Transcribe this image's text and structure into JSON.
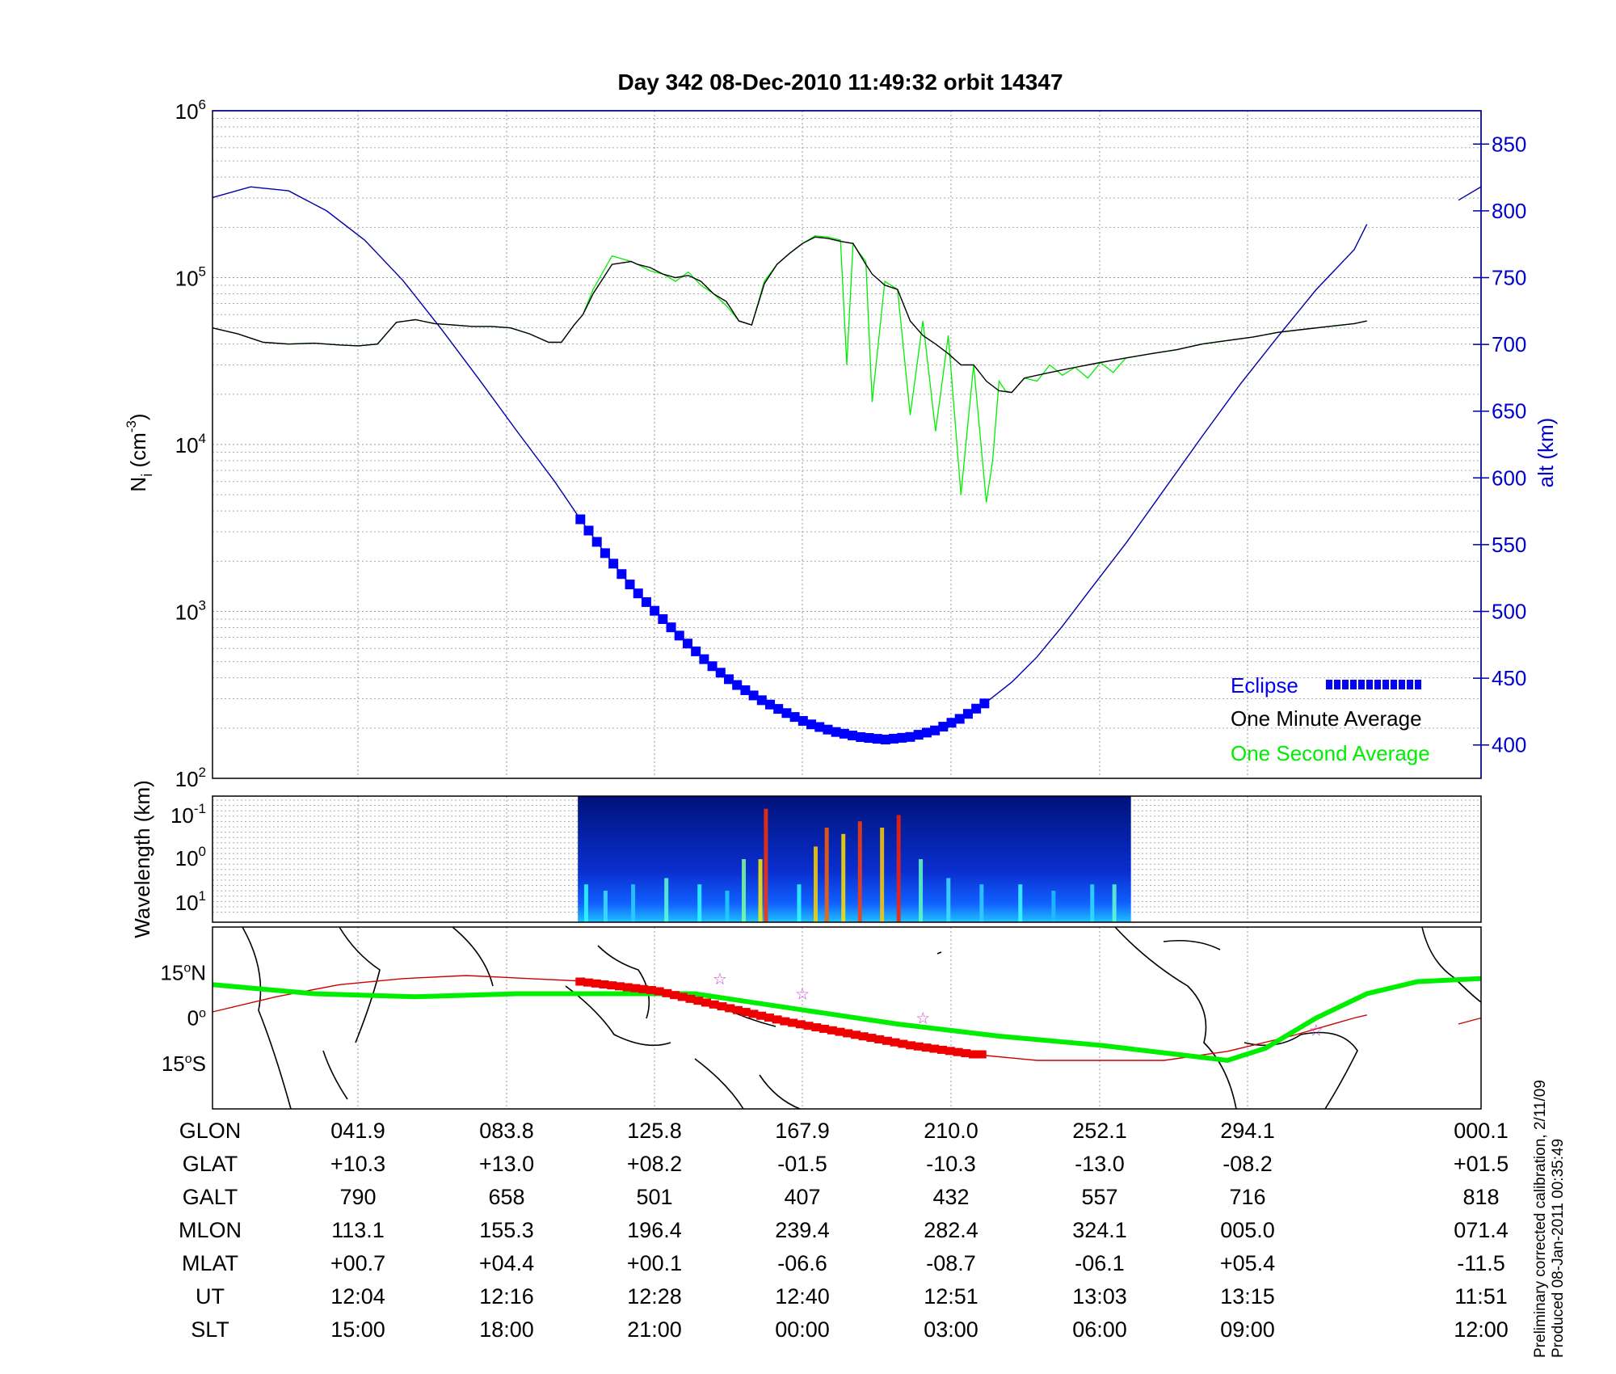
{
  "title": "Day 342  08-Dec-2010 11:49:32   orbit 14347",
  "chart_data": [
    {
      "type": "line",
      "panel": "density-altitude",
      "ylabel_left_html": "N",
      "ylabel_left_sub": "i",
      "ylabel_left_unit": "(cm",
      "ylabel_left_exp": "-3",
      "ylabel_left_close": ")",
      "ylabel_right": "alt (km)",
      "yscale_left": "log",
      "ylim_left": [
        100,
        1000000
      ],
      "yticks_left": [
        {
          "base": "10",
          "exp": "2"
        },
        {
          "base": "10",
          "exp": "3"
        },
        {
          "base": "10",
          "exp": "4"
        },
        {
          "base": "10",
          "exp": "5"
        },
        {
          "base": "10",
          "exp": "6"
        }
      ],
      "ylim_right": [
        375,
        875
      ],
      "yticks_right": [
        "400",
        "450",
        "500",
        "550",
        "600",
        "650",
        "700",
        "750",
        "800",
        "850"
      ],
      "x_ticks": [
        "12:04",
        "12:16",
        "12:28",
        "12:40",
        "12:51",
        "13:03",
        "13:15",
        "11:51"
      ],
      "grid": true,
      "legend": {
        "placement": "bottom-right",
        "entries": [
          {
            "label": "Eclipse",
            "color": "#0000ff"
          },
          {
            "label": "One Minute Average",
            "color": "#000000"
          },
          {
            "label": "One Second Average",
            "color": "#00ee00"
          }
        ]
      },
      "series": [
        {
          "name": "One Minute Average",
          "color": "#000000",
          "x": [
            0,
            0.02,
            0.04,
            0.06,
            0.08,
            0.1,
            0.115,
            0.13,
            0.145,
            0.16,
            0.175,
            0.19,
            0.205,
            0.22,
            0.235,
            0.25,
            0.265,
            0.275,
            0.285,
            0.292,
            0.3,
            0.315,
            0.33,
            0.335,
            0.345,
            0.355,
            0.365,
            0.375,
            0.385,
            0.395,
            0.405,
            0.415,
            0.425,
            0.435,
            0.445,
            0.455,
            0.465,
            0.475,
            0.485,
            0.495,
            0.505,
            0.515,
            0.52,
            0.53,
            0.54,
            0.55,
            0.56,
            0.57,
            0.58,
            0.59,
            0.6,
            0.61,
            0.62,
            0.63,
            0.64,
            0.65,
            0.66,
            0.67,
            0.68,
            0.69,
            0.7,
            0.71,
            0.72,
            0.74,
            0.76,
            0.78,
            0.8,
            0.82,
            0.84,
            0.86,
            0.88,
            0.9,
            0.91
          ],
          "y": [
            50000,
            46000,
            41000,
            40000,
            40500,
            39500,
            39000,
            40000,
            54000,
            56000,
            53000,
            52000,
            51000,
            51000,
            50000,
            46000,
            41000,
            41000,
            52000,
            60000,
            80000,
            120000,
            125000,
            120000,
            115000,
            105000,
            100000,
            103000,
            95000,
            80000,
            72000,
            55000,
            52000,
            92000,
            120000,
            140000,
            160000,
            175000,
            172000,
            165000,
            160000,
            120000,
            105000,
            90000,
            85000,
            55000,
            45000,
            40000,
            35000,
            30000,
            30000,
            24000,
            21000,
            20500,
            25000,
            26000,
            27000,
            28000,
            29000,
            30000,
            31000,
            32000,
            33000,
            35000,
            37000,
            40000,
            42000,
            44000,
            47000,
            49000,
            51000,
            53000,
            55000
          ]
        },
        {
          "name": "One Second Average",
          "color": "#00ee00",
          "x": [
            0,
            0.02,
            0.04,
            0.06,
            0.08,
            0.1,
            0.115,
            0.13,
            0.145,
            0.16,
            0.175,
            0.19,
            0.205,
            0.22,
            0.235,
            0.25,
            0.265,
            0.275,
            0.285,
            0.292,
            0.3,
            0.315,
            0.33,
            0.335,
            0.345,
            0.355,
            0.365,
            0.375,
            0.385,
            0.395,
            0.405,
            0.415,
            0.425,
            0.435,
            0.445,
            0.455,
            0.465,
            0.475,
            0.485,
            0.495,
            0.5,
            0.505,
            0.51,
            0.515,
            0.52,
            0.53,
            0.54,
            0.55,
            0.56,
            0.57,
            0.58,
            0.59,
            0.6,
            0.61,
            0.615,
            0.62,
            0.625,
            0.63,
            0.64,
            0.65,
            0.66,
            0.67,
            0.68,
            0.69,
            0.7,
            0.71,
            0.72,
            0.74,
            0.76,
            0.78,
            0.8,
            0.82,
            0.84,
            0.86,
            0.88,
            0.9,
            0.91
          ],
          "y": [
            50000,
            46000,
            41000,
            40000,
            40500,
            39500,
            39000,
            40000,
            54000,
            56000,
            53000,
            52000,
            51000,
            51000,
            50000,
            46000,
            41000,
            41000,
            52000,
            60000,
            85000,
            135000,
            125000,
            120000,
            110000,
            105000,
            95000,
            108000,
            90000,
            80000,
            68000,
            55000,
            52000,
            95000,
            120000,
            140000,
            160000,
            178000,
            175000,
            168000,
            30000,
            160000,
            140000,
            125000,
            18000,
            95000,
            85000,
            15000,
            55000,
            12000,
            45000,
            5000,
            30000,
            4500,
            8000,
            24000,
            21000,
            20500,
            25000,
            24000,
            30000,
            26000,
            29000,
            25000,
            31000,
            27000,
            33000,
            35000,
            37000,
            40000,
            42000,
            44000,
            47000,
            49000,
            51000,
            53000,
            55000
          ]
        },
        {
          "name": "alt",
          "axis": "right",
          "color": "#0000aa",
          "x": [
            0,
            0.03,
            0.06,
            0.09,
            0.12,
            0.15,
            0.18,
            0.21,
            0.24,
            0.27,
            0.29,
            0.31,
            0.33,
            0.35,
            0.37,
            0.39,
            0.41,
            0.43,
            0.45,
            0.47,
            0.49,
            0.51,
            0.53,
            0.55,
            0.57,
            0.59,
            0.61,
            0.63,
            0.65,
            0.67,
            0.69,
            0.72,
            0.75,
            0.78,
            0.81,
            0.84,
            0.87,
            0.9,
            0.91
          ],
          "y": [
            810,
            818,
            815,
            800,
            778,
            748,
            712,
            674,
            635,
            597,
            569,
            543,
            519,
            499,
            480,
            462,
            447,
            435,
            425,
            416,
            410,
            406,
            404,
            406,
            411,
            420,
            432,
            447,
            466,
            489,
            514,
            551,
            591,
            631,
            670,
            706,
            741,
            771,
            790
          ]
        }
      ],
      "eclipse": {
        "x": [
          0.29,
          0.61
        ],
        "x_ticks_as_labels": false
      }
    },
    {
      "type": "heatmap",
      "panel": "spectrogram",
      "ylabel": "Wavelength (km)",
      "yticks": [
        {
          "base": "10",
          "exp": "-1"
        },
        {
          "base": "10",
          "exp": "0"
        },
        {
          "base": "10",
          "exp": "1"
        }
      ],
      "data_window_x": [
        0.288,
        0.724
      ]
    },
    {
      "type": "line",
      "panel": "ground-track-map",
      "yticks": [
        {
          "value": "15",
          "unit": "N"
        },
        {
          "value": "0",
          "unit": ""
        },
        {
          "value": "15",
          "unit": "S"
        }
      ],
      "ylim": [
        -30,
        30
      ],
      "series": [
        {
          "name": "magnetic-equator",
          "color": "#00ee00",
          "x": [
            0,
            0.08,
            0.16,
            0.24,
            0.3,
            0.38,
            0.46,
            0.54,
            0.62,
            0.7,
            0.76,
            0.8,
            0.83,
            0.87,
            0.91,
            0.95,
            1.0
          ],
          "y": [
            11,
            8,
            7,
            8,
            8,
            8,
            3,
            -2,
            -6,
            -9,
            -12,
            -14,
            -10,
            0,
            8,
            12,
            13
          ]
        },
        {
          "name": "orbit-track",
          "color": "#cc0000",
          "x": [
            0,
            0.05,
            0.1,
            0.15,
            0.2,
            0.25,
            0.3,
            0.35,
            0.4,
            0.45,
            0.5,
            0.55,
            0.6,
            0.65,
            0.7,
            0.75,
            0.8,
            0.85,
            0.9,
            0.91
          ],
          "y": [
            2,
            7,
            11,
            13,
            14,
            13,
            12,
            8,
            3,
            -2,
            -6,
            -10,
            -12,
            -14,
            -14,
            -14,
            -11,
            -6,
            0,
            1
          ]
        },
        {
          "name": "eclipse-track",
          "color": "#ee0000",
          "x": [
            0.29,
            0.35,
            0.4,
            0.45,
            0.5,
            0.55,
            0.6,
            0.61
          ],
          "y": [
            12,
            9,
            4,
            -1,
            -5,
            -9,
            -12,
            -12
          ]
        }
      ]
    }
  ],
  "table": {
    "labels": [
      "GLON",
      "GLAT",
      "GALT",
      "MLON",
      "MLAT",
      "UT",
      "SLT"
    ],
    "columns": [
      [
        "041.9",
        "+10.3",
        "790",
        "113.1",
        "+00.7",
        "12:04",
        "15:00"
      ],
      [
        "083.8",
        "+13.0",
        "658",
        "155.3",
        "+04.4",
        "12:16",
        "18:00"
      ],
      [
        "125.8",
        "+08.2",
        "501",
        "196.4",
        "+00.1",
        "12:28",
        "21:00"
      ],
      [
        "167.9",
        "-01.5",
        "407",
        "239.4",
        "-06.6",
        "12:40",
        "00:00"
      ],
      [
        "210.0",
        "-10.3",
        "432",
        "282.4",
        "-08.7",
        "12:51",
        "03:00"
      ],
      [
        "252.1",
        "-13.0",
        "557",
        "324.1",
        "-06.1",
        "13:03",
        "06:00"
      ],
      [
        "294.1",
        "-08.2",
        "716",
        "005.0",
        "+05.4",
        "13:15",
        "09:00"
      ],
      [
        "000.1",
        "+01.5",
        "818",
        "071.4",
        "-11.5",
        "11:51",
        "12:00"
      ]
    ]
  },
  "side_notes": [
    "Preliminary corrected calibration, 2/11/09",
    "Produced 08-Jan-2011 00:35:49"
  ],
  "colors": {
    "axis_blue": "#0000cc",
    "eclipse": "#0000ff",
    "minute": "#000000",
    "second": "#00ee00",
    "track": "#cc0000"
  }
}
